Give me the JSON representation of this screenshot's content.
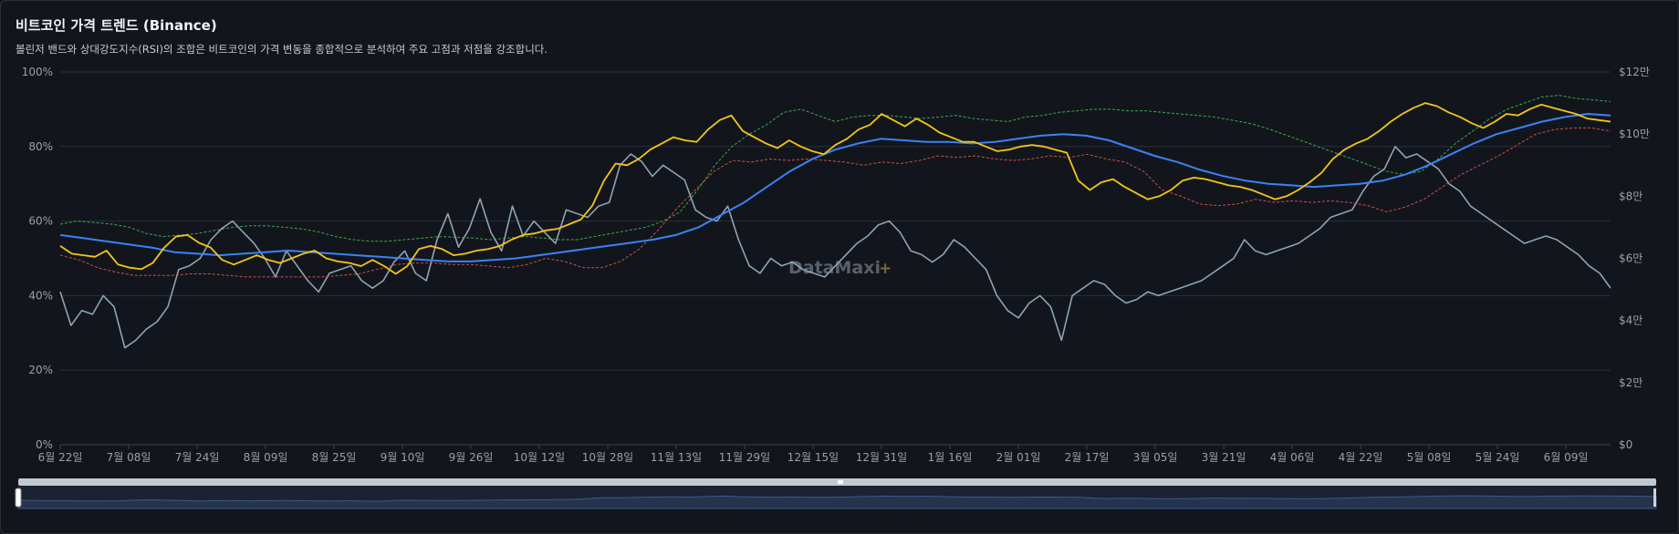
{
  "header": {
    "title": "비트코인 가격 트렌드 (Binance)",
    "subtitle": "볼린저 밴드와 상대강도지수(RSI)의 조합은 비트코인의 가격 변동을 종합적으로 분석하여 주요 고점과 저점을 강조합니다."
  },
  "watermark": {
    "text": "DataMaxi",
    "plus": "+"
  },
  "colors": {
    "background": "#12161c",
    "grid": "#2a2f37",
    "price": "#f5c518",
    "sma": "#3b82f6",
    "upper_band": "#3fb950",
    "lower_band": "#e5534b",
    "rsi": "#8fa3b5",
    "axis_text": "#9aa0a6"
  },
  "chart_data": {
    "type": "line",
    "x_labels": [
      "6월 22일",
      "7월 08일",
      "7월 24일",
      "8월 09일",
      "8월 25일",
      "9월 10일",
      "9월 26일",
      "10월 12일",
      "10월 28일",
      "11월 13일",
      "11월 29일",
      "12월 15일",
      "12월 31일",
      "1월 16일",
      "2월 01일",
      "2월 17일",
      "3월 05일",
      "3월 21일",
      "4월 06일",
      "4월 22일",
      "5월 08일",
      "5월 24일",
      "6월 09일"
    ],
    "y_left": {
      "ticks": [
        "0%",
        "20%",
        "40%",
        "60%",
        "80%",
        "100%"
      ],
      "range": [
        0,
        100
      ]
    },
    "y_right": {
      "ticks": [
        "$0",
        "$2만",
        "$4만",
        "$6만",
        "$8만",
        "$10만",
        "$12만"
      ],
      "range": [
        0,
        120000
      ]
    },
    "grid": true,
    "series": [
      {
        "key": "rsi",
        "axis": "left",
        "style": "solid",
        "values": [
          41,
          32,
          36,
          35,
          40,
          37,
          26,
          28,
          31,
          33,
          37,
          47,
          48,
          50,
          55,
          58,
          60,
          57,
          54,
          50,
          45,
          52,
          48,
          44,
          41,
          46,
          47,
          48,
          44,
          42,
          44,
          49,
          52,
          46,
          44,
          55,
          62,
          53,
          58,
          66,
          57,
          52,
          64,
          56,
          60,
          57,
          54,
          63,
          62,
          61,
          64,
          65,
          75,
          78,
          76,
          72,
          75,
          73,
          71,
          63,
          61,
          60,
          64,
          55,
          48,
          46,
          50,
          48,
          49,
          47,
          46,
          45,
          48,
          51,
          54,
          56,
          59,
          60,
          57,
          52,
          51,
          49,
          51,
          55,
          53,
          50,
          47,
          40,
          36,
          34,
          38,
          40,
          37,
          28,
          40,
          42,
          44,
          43,
          40,
          38,
          39,
          41,
          40,
          41,
          42,
          43,
          44,
          46,
          48,
          50,
          55,
          52,
          51,
          52,
          53,
          54,
          56,
          58,
          61,
          62,
          63,
          68,
          72,
          74,
          80,
          77,
          78,
          76,
          74,
          70,
          68,
          64,
          62,
          60,
          58,
          56,
          54,
          55,
          56,
          55,
          53,
          51,
          48,
          46,
          42
        ]
      },
      {
        "key": "upper_band",
        "axis": "right",
        "style": "dashed",
        "values": [
          71000,
          72000,
          71500,
          71000,
          70000,
          68000,
          67000,
          67500,
          68000,
          69000,
          70000,
          70500,
          70500,
          70000,
          69500,
          68500,
          67000,
          66000,
          65500,
          65500,
          66000,
          66500,
          67000,
          66800,
          66500,
          66000,
          66500,
          67000,
          66500,
          66000,
          66000,
          67000,
          68000,
          69000,
          70000,
          72000,
          75000,
          82000,
          90000,
          96000,
          100000,
          103000,
          107000,
          108000,
          106000,
          104000,
          105500,
          106000,
          106000,
          105500,
          105000,
          105500,
          106000,
          105000,
          104500,
          104000,
          105500,
          106000,
          107000,
          107500,
          108000,
          108000,
          107500,
          107500,
          107000,
          106500,
          106000,
          105500,
          104500,
          103500,
          102000,
          100000,
          98000,
          96000,
          94000,
          92000,
          90000,
          88000,
          87000,
          88000,
          92000,
          97000,
          101000,
          105000,
          108000,
          110000,
          112000,
          112500,
          111500,
          111000,
          110500
        ]
      },
      {
        "key": "sma",
        "axis": "right",
        "style": "solid",
        "values": [
          67500,
          66500,
          65500,
          64500,
          63500,
          62000,
          61500,
          61000,
          61500,
          62000,
          62500,
          62000,
          61500,
          61000,
          60500,
          60000,
          59500,
          59000,
          59000,
          59500,
          60000,
          61000,
          62000,
          63000,
          64000,
          65000,
          66000,
          67500,
          70000,
          74000,
          78000,
          83000,
          88000,
          92000,
          95000,
          97000,
          98500,
          98000,
          97500,
          97500,
          97000,
          97500,
          98500,
          99500,
          100000,
          99500,
          98000,
          95500,
          93000,
          91000,
          88500,
          86500,
          85000,
          84000,
          83500,
          83000,
          83500,
          84000,
          85000,
          87000,
          90000,
          93500,
          97000,
          100000,
          102000,
          104000,
          105500,
          106500,
          106000
        ]
      },
      {
        "key": "lower_band",
        "axis": "right",
        "style": "dashed",
        "values": [
          61000,
          59500,
          57000,
          55500,
          54500,
          54500,
          54500,
          55000,
          55000,
          54500,
          54000,
          54000,
          54000,
          54000,
          54000,
          54500,
          55000,
          56500,
          58000,
          58500,
          58500,
          58000,
          58000,
          57500,
          57000,
          58000,
          60000,
          59000,
          57000,
          57000,
          59000,
          63000,
          69000,
          76000,
          82000,
          88000,
          91500,
          91000,
          92000,
          91500,
          92000,
          91500,
          91000,
          90000,
          91000,
          90500,
          91500,
          93000,
          92500,
          93000,
          92000,
          91500,
          92000,
          93000,
          92500,
          93500,
          92000,
          91000,
          88000,
          82000,
          80000,
          77500,
          77000,
          77500,
          79000,
          78000,
          78500,
          78000,
          78500,
          78000,
          77000,
          75000,
          76500,
          79000,
          83000,
          87000,
          90000,
          93000,
          96500,
          100000,
          101500,
          102000,
          102000,
          101000
        ]
      },
      {
        "key": "price",
        "axis": "right",
        "style": "solid",
        "values": [
          64000,
          61500,
          61000,
          60500,
          62500,
          58000,
          57000,
          56500,
          58500,
          63500,
          67000,
          67500,
          65000,
          63500,
          59500,
          58000,
          59500,
          61000,
          59500,
          58500,
          60000,
          61500,
          62500,
          60000,
          59000,
          58500,
          57500,
          59500,
          57500,
          55000,
          57500,
          63000,
          64000,
          63000,
          61000,
          61500,
          62500,
          63000,
          64000,
          66000,
          67500,
          68000,
          69000,
          69500,
          71000,
          72500,
          77000,
          85000,
          90500,
          90000,
          92000,
          95000,
          97000,
          99000,
          98000,
          97500,
          101500,
          104500,
          106000,
          101000,
          99000,
          97000,
          95500,
          98000,
          96000,
          94500,
          93500,
          96500,
          98500,
          101500,
          103000,
          106500,
          104500,
          102500,
          105000,
          103000,
          100500,
          99000,
          97500,
          97500,
          96000,
          94500,
          95000,
          96000,
          96500,
          96000,
          95000,
          94000,
          85000,
          82000,
          84500,
          85500,
          83000,
          81000,
          79000,
          80000,
          82000,
          85000,
          86000,
          85500,
          84500,
          83500,
          83000,
          82000,
          80500,
          79000,
          80000,
          82000,
          84500,
          87500,
          92000,
          95000,
          97000,
          98500,
          101000,
          104000,
          106500,
          108500,
          110000,
          109000,
          107000,
          105500,
          103500,
          102000,
          104000,
          106500,
          106000,
          108000,
          109500,
          108500,
          107500,
          106500,
          105000,
          104500,
          104000
        ]
      }
    ]
  }
}
